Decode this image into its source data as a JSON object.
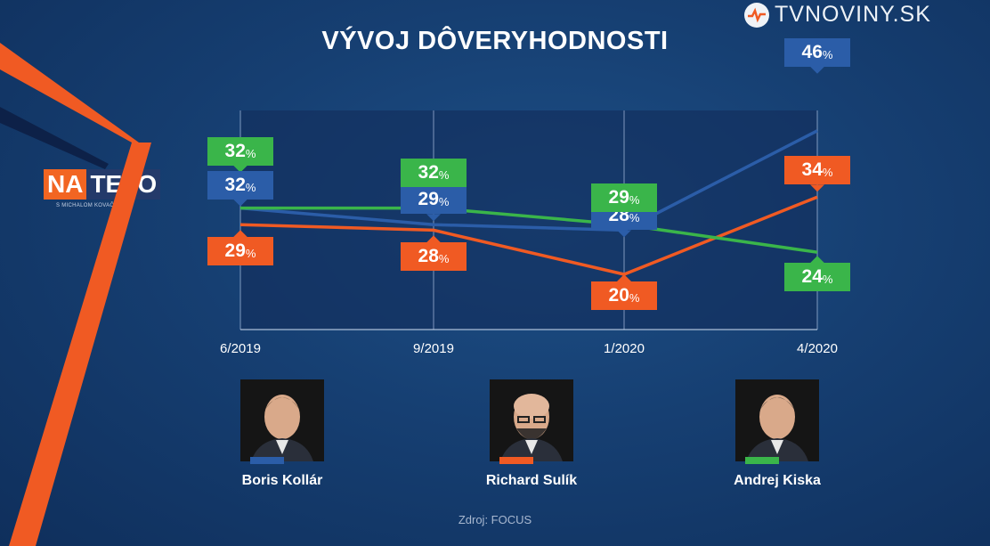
{
  "brand": {
    "name": "TVNOVINY.SK",
    "icon": "tvnoviny-logo"
  },
  "show": {
    "logo_left": "NA",
    "logo_right": "TELO",
    "subtitle": "S MICHALOM KOVAČICOM"
  },
  "title": "VÝVOJ DÔVERYHODNOSTI",
  "source": "Zdroj: FOCUS",
  "colors": {
    "Kollár": "#2b5da8",
    "Sulík": "#f05a23",
    "Kiska": "#3ab54a"
  },
  "chart_data": {
    "type": "line",
    "title": "VÝVOJ DÔVERYHODNOSTI",
    "x": [
      "6/2019",
      "9/2019",
      "1/2020",
      "4/2020"
    ],
    "series": [
      {
        "name": "Boris Kollár",
        "values": [
          32,
          29,
          28,
          46
        ]
      },
      {
        "name": "Richard Sulík",
        "values": [
          29,
          28,
          20,
          34
        ]
      },
      {
        "name": "Andrej Kiska",
        "values": [
          32,
          32,
          29,
          24
        ]
      }
    ],
    "value_suffix": "%",
    "grid": "vertical",
    "legend": "bottom, photos with colored stripes"
  }
}
